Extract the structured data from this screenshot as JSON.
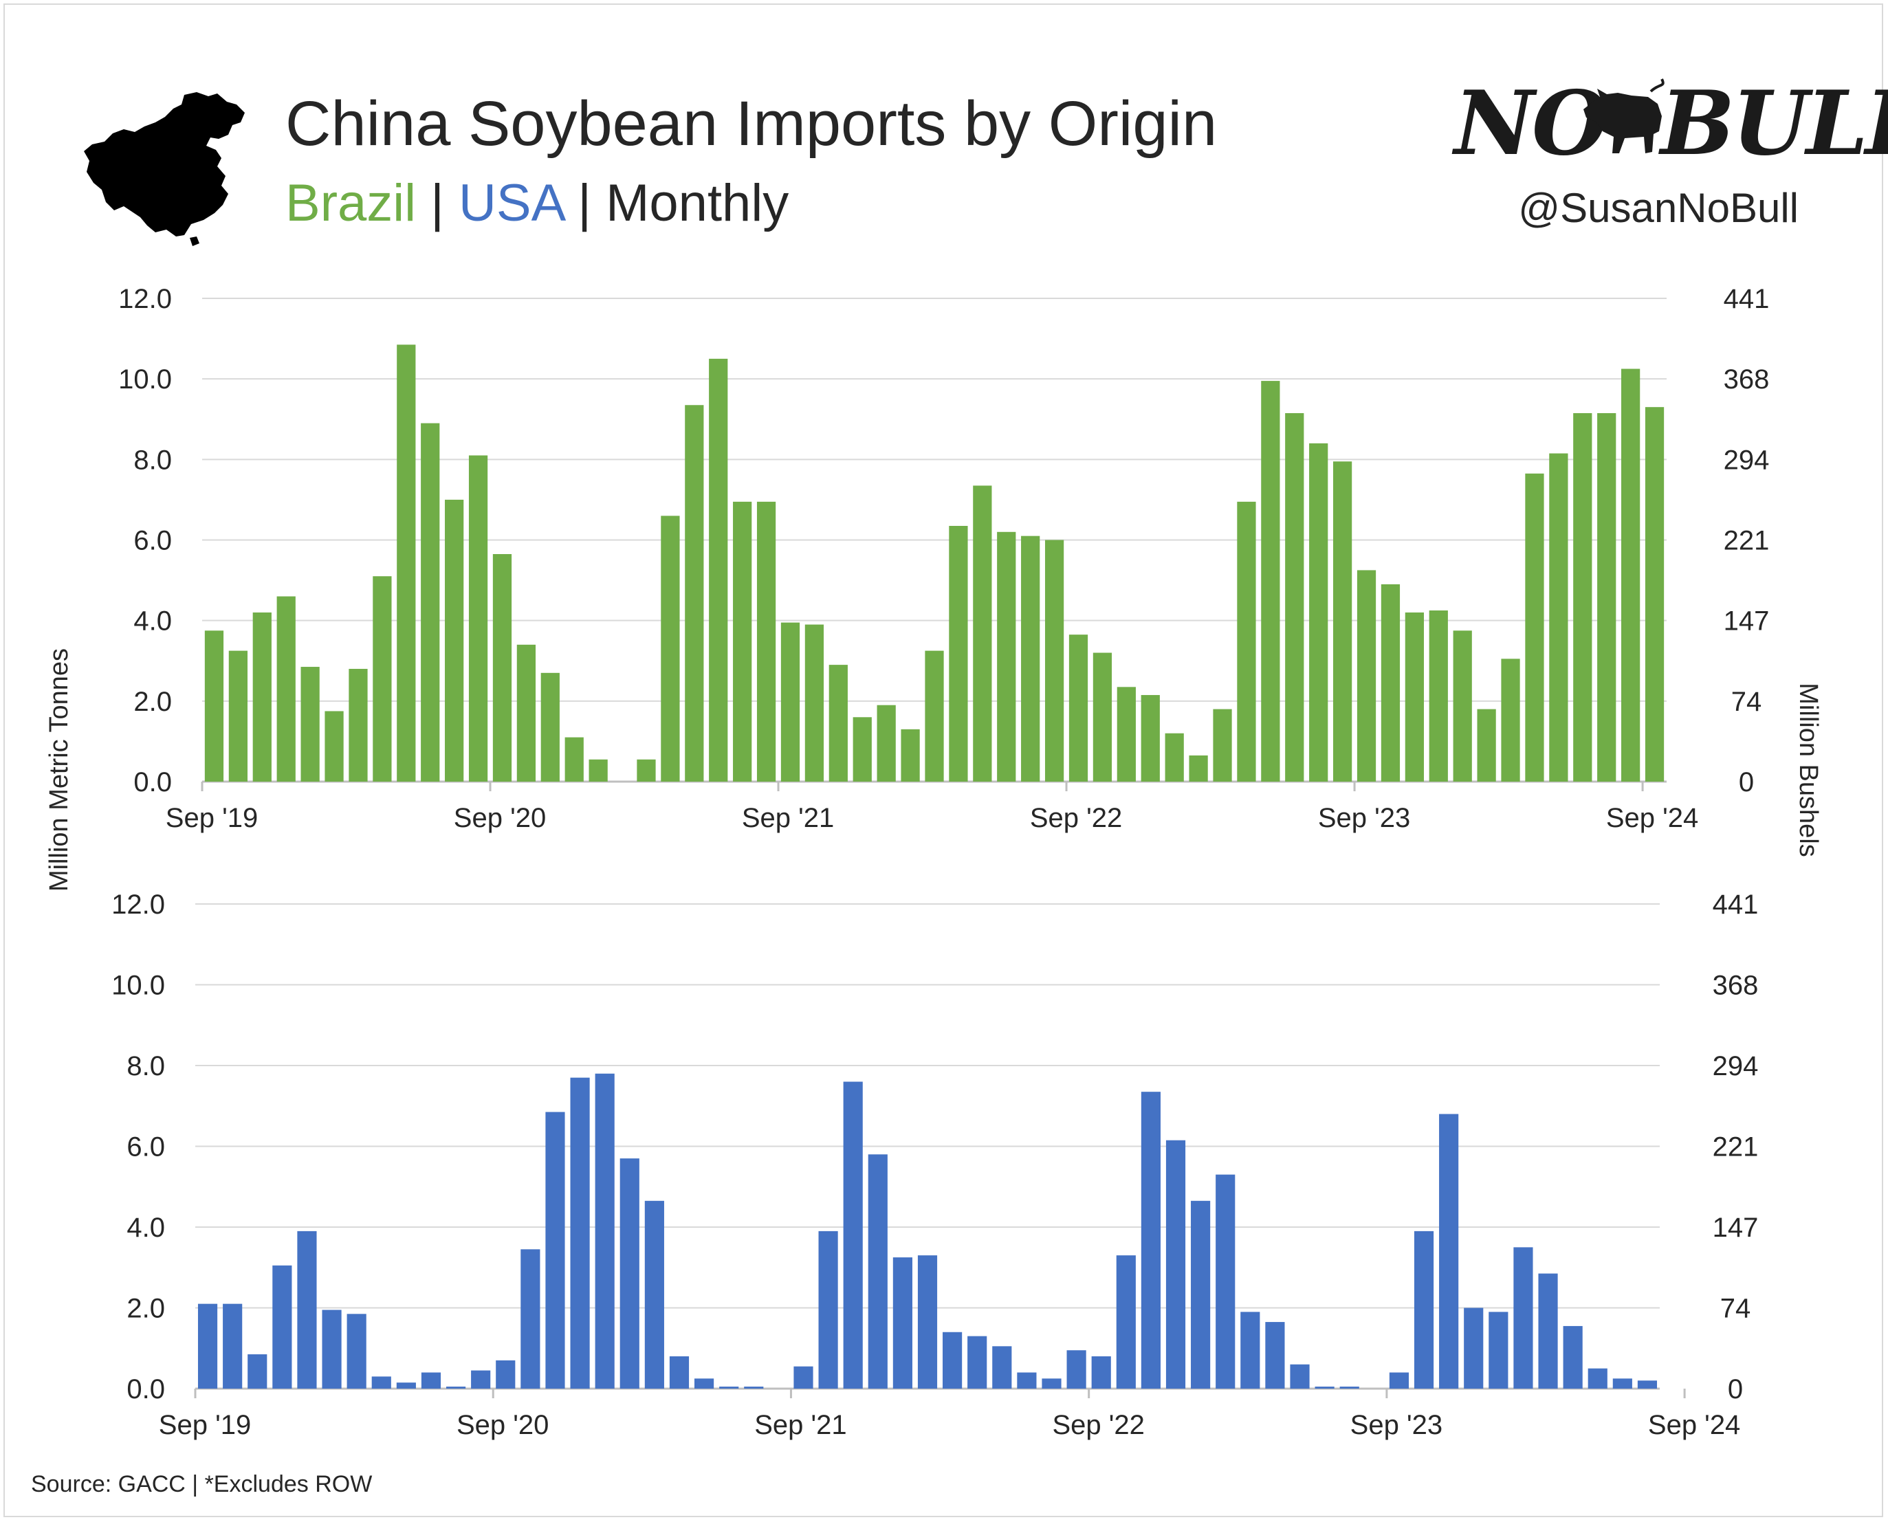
{
  "header": {
    "title": "China Soybean Imports by Origin",
    "subtitle": {
      "brazil": "Brazil",
      "sep1": " | ",
      "usa": "USA",
      "sep2": " | ",
      "freq": "Monthly"
    },
    "logo_left": "NO",
    "logo_right": "BULL",
    "handle": "@SusanNoBull"
  },
  "source": "Source: GACC | *Excludes ROW",
  "colors": {
    "brazil": "#70ad47",
    "usa": "#4472c4",
    "grid": "#d9d9d9",
    "text": "#262626"
  },
  "icons": {
    "map": "china-map-icon",
    "logo": "bull-icon"
  },
  "chart_data": [
    {
      "type": "bar",
      "series": [
        {
          "name": "Brazil",
          "values": [
            3.75,
            3.25,
            4.2,
            4.6,
            2.85,
            1.75,
            2.8,
            5.1,
            10.85,
            8.9,
            7.0,
            8.1,
            5.65,
            3.4,
            2.7,
            1.1,
            0.55,
            0.0,
            0.55,
            6.6,
            9.35,
            10.5,
            6.95,
            6.95,
            3.95,
            3.9,
            2.9,
            1.6,
            1.9,
            1.3,
            3.25,
            6.35,
            7.35,
            6.2,
            6.1,
            6.0,
            3.65,
            3.2,
            2.35,
            2.15,
            1.2,
            0.65,
            1.8,
            6.95,
            9.95,
            9.15,
            8.4,
            7.95,
            5.25,
            4.9,
            4.2,
            4.25,
            3.75,
            1.8,
            3.05,
            7.65,
            8.15,
            9.15,
            9.15,
            10.25,
            9.3
          ]
        }
      ],
      "x_tick_labels": [
        "Sep '19",
        "Sep '20",
        "Sep '21",
        "Sep '22",
        "Sep '23",
        "Sep '24"
      ],
      "y_ticks": [
        "0.0",
        "2.0",
        "4.0",
        "6.0",
        "8.0",
        "10.0",
        "12.0"
      ],
      "y2_ticks": [
        "0",
        "74",
        "147",
        "221",
        "294",
        "368",
        "441"
      ],
      "ylim": [
        0,
        12
      ],
      "grid": true
    },
    {
      "type": "bar",
      "series": [
        {
          "name": "USA",
          "values": [
            2.1,
            2.1,
            0.85,
            3.05,
            3.9,
            1.95,
            1.85,
            0.3,
            0.15,
            0.4,
            0.05,
            0.45,
            0.7,
            3.45,
            6.85,
            7.7,
            7.8,
            5.7,
            4.65,
            0.8,
            0.25,
            0.05,
            0.05,
            0.0,
            0.55,
            3.9,
            7.6,
            5.8,
            3.25,
            3.3,
            1.4,
            1.3,
            1.05,
            0.4,
            0.25,
            0.95,
            0.8,
            3.3,
            7.35,
            6.15,
            4.65,
            5.3,
            1.9,
            1.65,
            0.6,
            0.05,
            0.05,
            0.0,
            0.4,
            3.9,
            6.8,
            2.0,
            1.9,
            3.5,
            2.85,
            1.55,
            0.5,
            0.25,
            0.2
          ]
        }
      ],
      "x_tick_labels": [
        "Sep '19",
        "Sep '20",
        "Sep '21",
        "Sep '22",
        "Sep '23",
        "Sep '24"
      ],
      "y_ticks": [
        "0.0",
        "2.0",
        "4.0",
        "6.0",
        "8.0",
        "10.0",
        "12.0"
      ],
      "y2_ticks": [
        "0",
        "74",
        "147",
        "221",
        "294",
        "368",
        "441"
      ],
      "ylim": [
        0,
        12
      ],
      "grid": true
    }
  ],
  "axes": {
    "ylabel_left": "Million Metric Tonnes",
    "ylabel_right": "Million Bushels"
  }
}
